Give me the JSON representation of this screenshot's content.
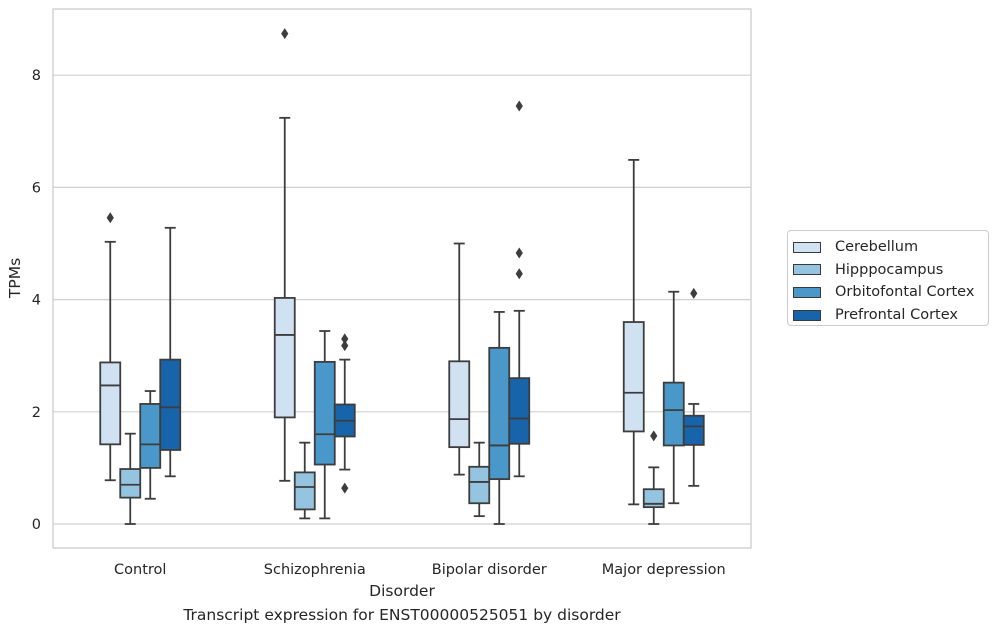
{
  "caption": "Transcript expression for ENST00000525051 by disorder",
  "chart_data": {
    "type": "boxplot",
    "xlabel": "Disorder",
    "ylabel": "TPMs",
    "ylim": [
      -0.4,
      9.3
    ],
    "yticks": [
      0,
      2,
      4,
      6,
      8
    ],
    "grid": "horizontal",
    "legend_placement": "right",
    "categories": [
      "Control",
      "Schizophrenia",
      "Bipolar disorder",
      "Major depression"
    ],
    "series": [
      {
        "name": "Cerebellum",
        "color": "#d0e1f2",
        "boxes": [
          {
            "whisker_low": 0.78,
            "q1": 1.42,
            "median": 2.47,
            "q3": 2.88,
            "whisker_high": 5.03,
            "outliers": [
              5.46
            ]
          },
          {
            "whisker_low": 0.77,
            "q1": 1.9,
            "median": 3.37,
            "q3": 4.03,
            "whisker_high": 7.24,
            "outliers": [
              8.74
            ]
          },
          {
            "whisker_low": 0.88,
            "q1": 1.37,
            "median": 1.87,
            "q3": 2.9,
            "whisker_high": 5.0,
            "outliers": []
          },
          {
            "whisker_low": 0.35,
            "q1": 1.65,
            "median": 2.34,
            "q3": 3.6,
            "whisker_high": 6.49,
            "outliers": []
          }
        ]
      },
      {
        "name": "Hipppocampus",
        "color": "#94c4df",
        "boxes": [
          {
            "whisker_low": 0.0,
            "q1": 0.47,
            "median": 0.7,
            "q3": 0.98,
            "whisker_high": 1.61,
            "outliers": []
          },
          {
            "whisker_low": 0.1,
            "q1": 0.26,
            "median": 0.66,
            "q3": 0.92,
            "whisker_high": 1.45,
            "outliers": []
          },
          {
            "whisker_low": 0.14,
            "q1": 0.37,
            "median": 0.75,
            "q3": 1.02,
            "whisker_high": 1.45,
            "outliers": []
          },
          {
            "whisker_low": 0.0,
            "q1": 0.3,
            "median": 0.36,
            "q3": 0.62,
            "whisker_high": 1.01,
            "outliers": [
              1.57
            ]
          }
        ]
      },
      {
        "name": "Orbitofontal Cortex",
        "color": "#4a98c9",
        "boxes": [
          {
            "whisker_low": 0.45,
            "q1": 1.0,
            "median": 1.42,
            "q3": 2.14,
            "whisker_high": 2.37,
            "outliers": []
          },
          {
            "whisker_low": 0.1,
            "q1": 1.06,
            "median": 1.6,
            "q3": 2.89,
            "whisker_high": 3.44,
            "outliers": []
          },
          {
            "whisker_low": 0.0,
            "q1": 0.8,
            "median": 1.4,
            "q3": 3.14,
            "whisker_high": 3.78,
            "outliers": []
          },
          {
            "whisker_low": 0.37,
            "q1": 1.4,
            "median": 2.03,
            "q3": 2.52,
            "whisker_high": 4.14,
            "outliers": []
          }
        ]
      },
      {
        "name": "Prefrontal Cortex",
        "color": "#1764ab",
        "boxes": [
          {
            "whisker_low": 0.85,
            "q1": 1.32,
            "median": 2.08,
            "q3": 2.93,
            "whisker_high": 5.28,
            "outliers": []
          },
          {
            "whisker_low": 0.97,
            "q1": 1.56,
            "median": 1.84,
            "q3": 2.13,
            "whisker_high": 2.93,
            "outliers": [
              0.64,
              3.18,
              3.3
            ]
          },
          {
            "whisker_low": 0.85,
            "q1": 1.43,
            "median": 1.88,
            "q3": 2.6,
            "whisker_high": 3.8,
            "outliers": [
              4.46,
              4.83,
              7.45
            ]
          },
          {
            "whisker_low": 0.68,
            "q1": 1.41,
            "median": 1.74,
            "q3": 1.93,
            "whisker_high": 2.14,
            "outliers": [
              4.11
            ]
          }
        ]
      }
    ]
  }
}
